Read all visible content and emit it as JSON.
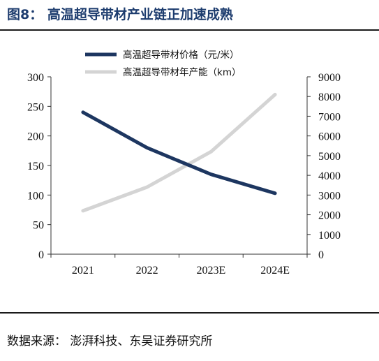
{
  "figure": {
    "title": "图8：  高温超导带材产业链正加速成熟",
    "source": "数据来源：  澎湃科技、东吴证券研究所"
  },
  "colors": {
    "price": "#1d3660",
    "capacity": "#d4d4d4"
  },
  "chart_data": {
    "type": "line",
    "categories": [
      "2021",
      "2022",
      "2023E",
      "2024E"
    ],
    "series": [
      {
        "name": "高温超导带材价格（元/米）",
        "axis": "left",
        "values": [
          240,
          180,
          135,
          103
        ]
      },
      {
        "name": "高温超导带材年产能（km）",
        "axis": "right",
        "values": [
          2200,
          3400,
          5200,
          8100
        ]
      }
    ],
    "yleft": {
      "lim": [
        0,
        300
      ],
      "ticks": [
        0,
        50,
        100,
        150,
        200,
        250,
        300
      ]
    },
    "yright": {
      "lim": [
        0,
        9000
      ],
      "ticks": [
        0,
        1000,
        2000,
        3000,
        4000,
        5000,
        6000,
        7000,
        8000,
        9000
      ]
    },
    "legend": "top",
    "grid": false
  }
}
